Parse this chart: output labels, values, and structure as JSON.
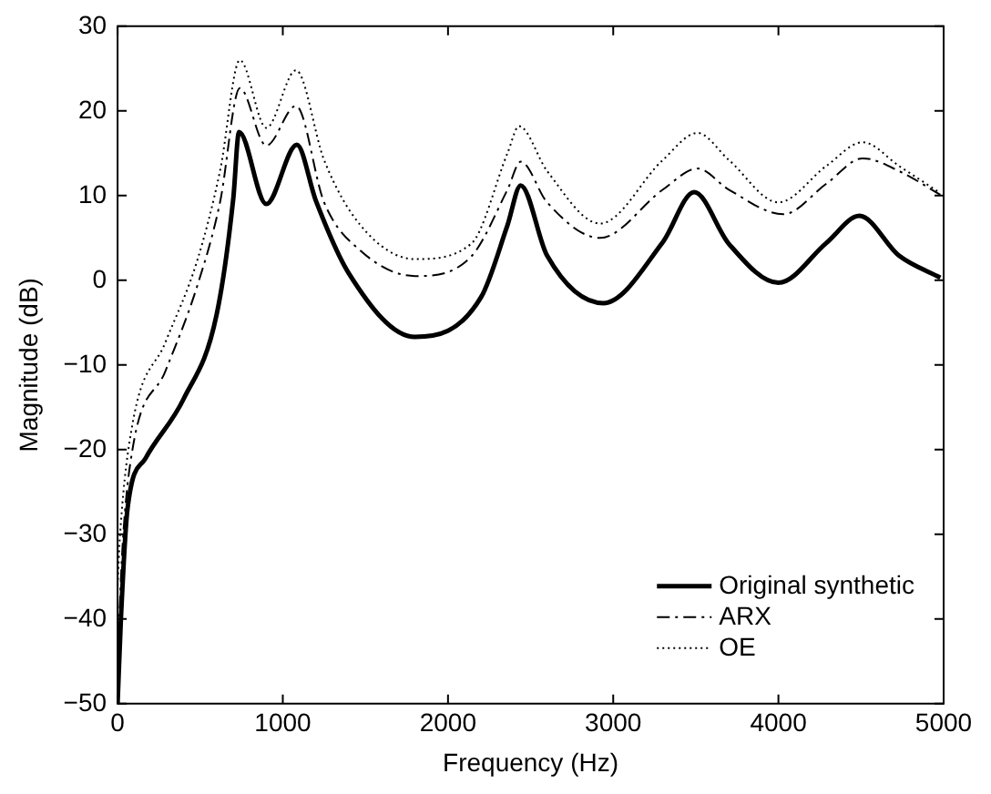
{
  "chart_data": {
    "type": "line",
    "xlabel": "Frequency (Hz)",
    "ylabel": "Magnitude (dB)",
    "xlim": [
      0,
      5000
    ],
    "xticks": [
      0,
      1000,
      2000,
      3000,
      4000,
      5000
    ],
    "ylim": [
      -50,
      30
    ],
    "yticks": [
      -50,
      -40,
      -30,
      -20,
      -10,
      0,
      10,
      20,
      30
    ],
    "grid": false,
    "legend": "bottom right",
    "marker": "none",
    "series": [
      {
        "name": "Original synthetic",
        "color": "#000000",
        "line_style": "solid",
        "x": [
          0,
          20,
          60,
          170,
          400,
          600,
          700,
          735,
          900,
          1085,
          1200,
          1400,
          1800,
          2200,
          2360,
          2440,
          2600,
          2940,
          3300,
          3490,
          3700,
          4000,
          4290,
          4490,
          4730,
          4980
        ],
        "values": [
          -50,
          -40,
          -27,
          -21,
          -14,
          -4,
          9.6,
          17.5,
          9,
          16,
          9.4,
          0.8,
          -6.7,
          -2,
          6.5,
          11.2,
          2.9,
          -2.7,
          4.5,
          10.4,
          4.3,
          -0.3,
          4.4,
          7.6,
          2.9,
          0.3
        ]
      },
      {
        "name": "ARX",
        "color": "#000000",
        "line_style": "dashed",
        "x": [
          0,
          30,
          90,
          290,
          480,
          620,
          740,
          900,
          1080,
          1250,
          1470,
          1800,
          2140,
          2360,
          2440,
          2600,
          2920,
          3300,
          3510,
          3700,
          4030,
          4290,
          4510,
          4730,
          4980
        ],
        "values": [
          -45,
          -31.4,
          -20,
          -10.7,
          -0.8,
          9.2,
          22.7,
          15.9,
          20.6,
          9.2,
          3.5,
          0.5,
          2.8,
          10.7,
          14,
          9.2,
          5,
          10.7,
          13.2,
          10.7,
          7.8,
          11.4,
          14.4,
          12.9,
          10.1
        ]
      },
      {
        "name": "OE",
        "color": "#000000",
        "line_style": "dotted",
        "x": [
          0,
          15,
          90,
          290,
          480,
          620,
          740,
          900,
          1080,
          1250,
          1470,
          1800,
          2140,
          2360,
          2430,
          2600,
          2920,
          3300,
          3510,
          3700,
          4000,
          4290,
          4510,
          4730,
          4980
        ],
        "values": [
          -36,
          -30,
          -17,
          -7.3,
          2.2,
          12.9,
          26,
          18,
          24.8,
          14.2,
          6.5,
          2.5,
          4.3,
          15,
          18.2,
          12.9,
          6.7,
          14.2,
          17.4,
          14.2,
          9.2,
          13.5,
          16.3,
          13.5,
          10.3
        ]
      }
    ]
  }
}
